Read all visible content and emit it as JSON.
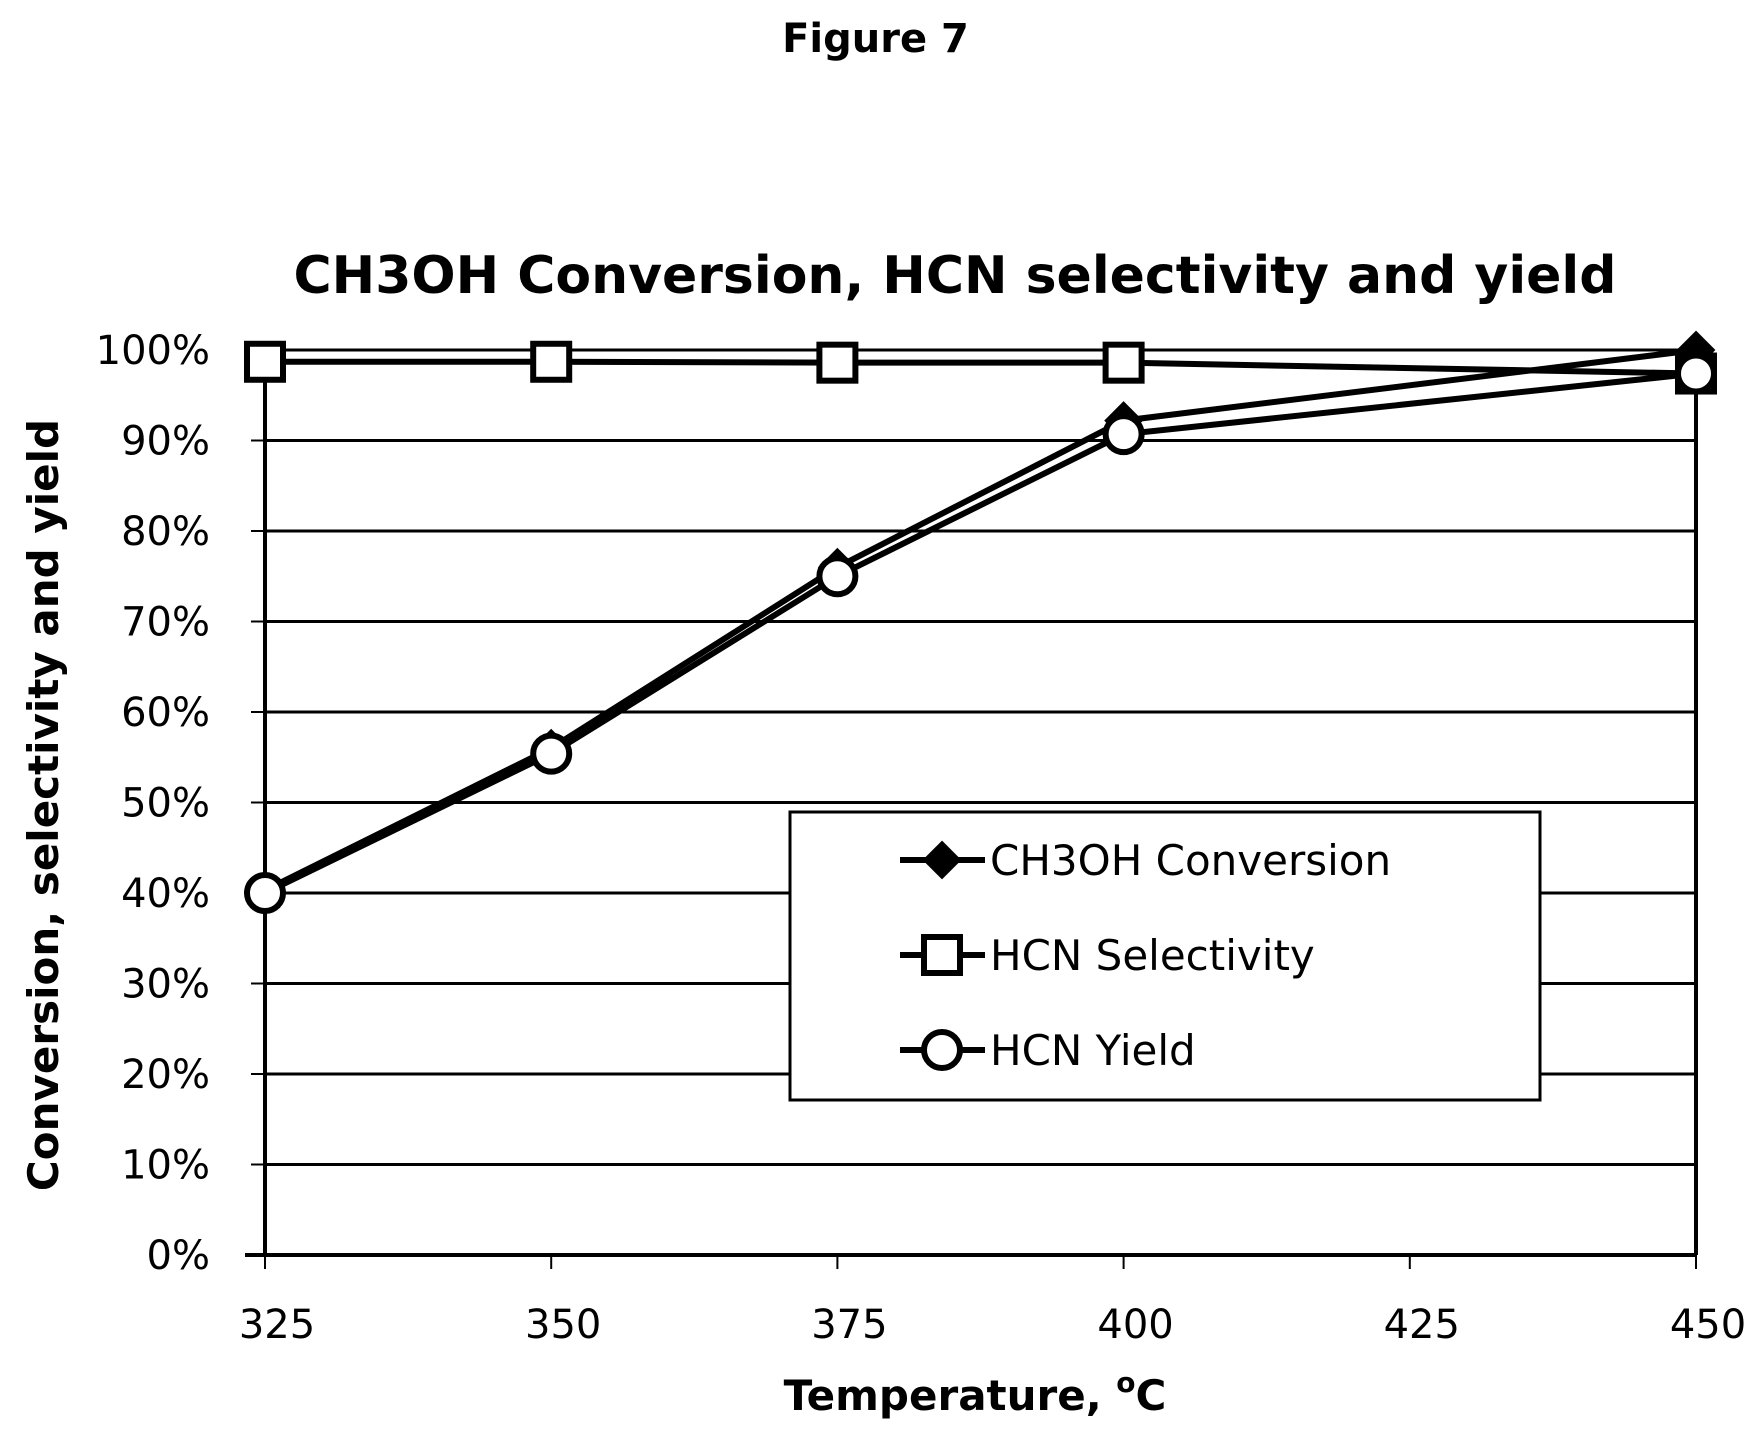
{
  "figure_caption": "Figure 7",
  "chart_data": {
    "type": "line",
    "title": "CH3OH Conversion, HCN selectivity and yield",
    "xlabel": "Temperature, ",
    "xlabel_sup": "o",
    "xlabel_suffix": "C",
    "ylabel": "Conversion, selectivity and yield",
    "x_ticks": [
      325,
      350,
      375,
      400,
      425,
      450
    ],
    "xlim": [
      325,
      450
    ],
    "y_ticks": [
      0,
      10,
      20,
      30,
      40,
      50,
      60,
      70,
      80,
      90,
      100
    ],
    "y_tick_labels": [
      "0%",
      "10%",
      "20%",
      "30%",
      "40%",
      "50%",
      "60%",
      "70%",
      "80%",
      "90%",
      "100%"
    ],
    "ylim": [
      0,
      100
    ],
    "grid": "horizontal",
    "legend_position": "center-right",
    "series": [
      {
        "name": "CH3OH Conversion",
        "marker": "diamond",
        "x": [
          325,
          350,
          375,
          400,
          450
        ],
        "values": [
          40.3,
          56.0,
          76.0,
          92.2,
          100.0
        ]
      },
      {
        "name": "HCN Selectivity",
        "marker": "square",
        "x": [
          325,
          350,
          375,
          400,
          450
        ],
        "values": [
          98.7,
          98.7,
          98.6,
          98.6,
          97.4
        ]
      },
      {
        "name": "HCN Yield",
        "marker": "circle",
        "x": [
          325,
          350,
          375,
          400,
          450
        ],
        "values": [
          40.0,
          55.4,
          75.0,
          90.7,
          97.4
        ]
      }
    ]
  }
}
